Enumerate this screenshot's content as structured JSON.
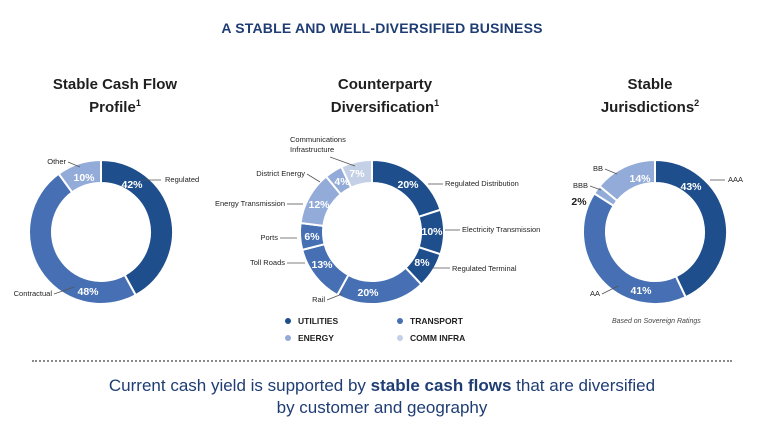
{
  "header": {
    "title": "A STABLE AND WELL-DIVERSIFIED BUSINESS"
  },
  "colors": {
    "dark": "#1f4e8c",
    "mid": "#4670b3",
    "light": "#93abd8",
    "pale": "#c3d0e6",
    "title": "#1f3d73"
  },
  "chart_data": [
    {
      "type": "pie",
      "variant": "donut",
      "title": "Stable Cash Flow Profile",
      "title_line1": "Stable Cash Flow",
      "title_line2": "Profile",
      "title_sup": "1",
      "categories": [
        "Regulated",
        "Contractual",
        "Other"
      ],
      "values": [
        42,
        48,
        10
      ],
      "value_labels": [
        "42%",
        "48%",
        "10%"
      ],
      "colors": [
        "#1f4e8c",
        "#4670b3",
        "#93abd8"
      ]
    },
    {
      "type": "pie",
      "variant": "donut",
      "title": "Counterparty Diversification",
      "title_line1": "Counterparty",
      "title_line2": "Diversification",
      "title_sup": "1",
      "categories": [
        "Regulated Distribution",
        "Electricity Transmission",
        "Regulated Terminal",
        "Rail",
        "Toll Roads",
        "Ports",
        "Energy Transmission",
        "District Energy",
        "Communications Infrastructure"
      ],
      "category_lines": [
        [
          "Regulated Distribution"
        ],
        [
          "Electricity Transmission"
        ],
        [
          "Regulated Terminal"
        ],
        [
          "Rail"
        ],
        [
          "Toll Roads"
        ],
        [
          "Ports"
        ],
        [
          "Energy Transmission"
        ],
        [
          "District Energy"
        ],
        [
          "Communications",
          "Infrastructure"
        ]
      ],
      "values": [
        20,
        10,
        8,
        20,
        13,
        6,
        12,
        4,
        7
      ],
      "value_labels": [
        "20%",
        "10%",
        "8%",
        "20%",
        "13%",
        "6%",
        "12%",
        "4%",
        "7%"
      ],
      "colors": [
        "#1f4e8c",
        "#1f4e8c",
        "#1f4e8c",
        "#4670b3",
        "#4670b3",
        "#4670b3",
        "#93abd8",
        "#93abd8",
        "#c3d0e6"
      ],
      "legend": [
        {
          "label": "UTILITIES",
          "color": "#1f4e8c"
        },
        {
          "label": "TRANSPORT",
          "color": "#4670b3"
        },
        {
          "label": "ENERGY",
          "color": "#93abd8"
        },
        {
          "label": "COMM INFRA",
          "color": "#c3d0e6"
        }
      ]
    },
    {
      "type": "pie",
      "variant": "donut",
      "title": "Stable Jurisdictions",
      "title_line1": "Stable",
      "title_line2": "Jurisdictions",
      "title_sup": "2",
      "categories": [
        "AAA",
        "AA",
        "BBB",
        "BB"
      ],
      "values": [
        43,
        41,
        2,
        14
      ],
      "value_labels": [
        "43%",
        "41%",
        "2%",
        "14%"
      ],
      "colors": [
        "#1f4e8c",
        "#4670b3",
        "#93abd8",
        "#93abd8"
      ],
      "note": "Based on Sovereign Ratings"
    }
  ],
  "footer": {
    "part1": "Current cash yield is supported by ",
    "part2": "stable cash flows",
    "part3": " that are diversified",
    "part4": "by customer and geography"
  }
}
